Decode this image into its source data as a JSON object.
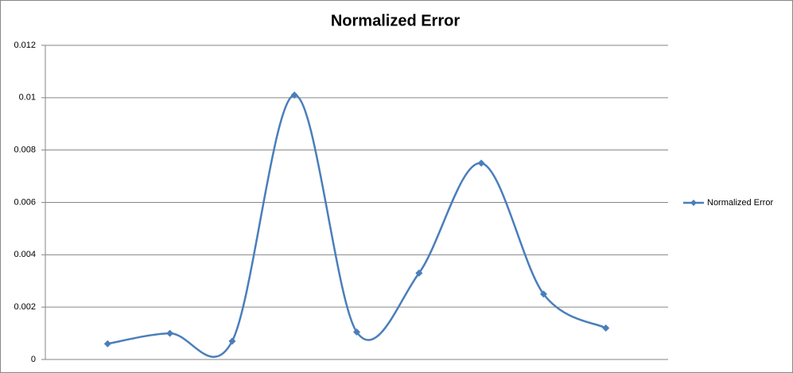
{
  "chart_data": {
    "type": "line",
    "title": "Normalized Error",
    "categories": [
      null,
      null,
      null,
      null,
      null,
      null,
      null,
      null,
      null
    ],
    "series": [
      {
        "name": "Normalized Error",
        "color": "#4a7ebb",
        "values": [
          0.0006,
          0.001,
          0.0007,
          0.0101,
          0.00105,
          0.0033,
          0.0075,
          0.0025,
          0.0012
        ]
      }
    ],
    "ylim": [
      0,
      0.012
    ],
    "yticks": [
      0,
      0.002,
      0.004,
      0.006,
      0.008,
      0.01,
      0.012
    ],
    "grid": true,
    "smooth": true,
    "legend": "right"
  }
}
